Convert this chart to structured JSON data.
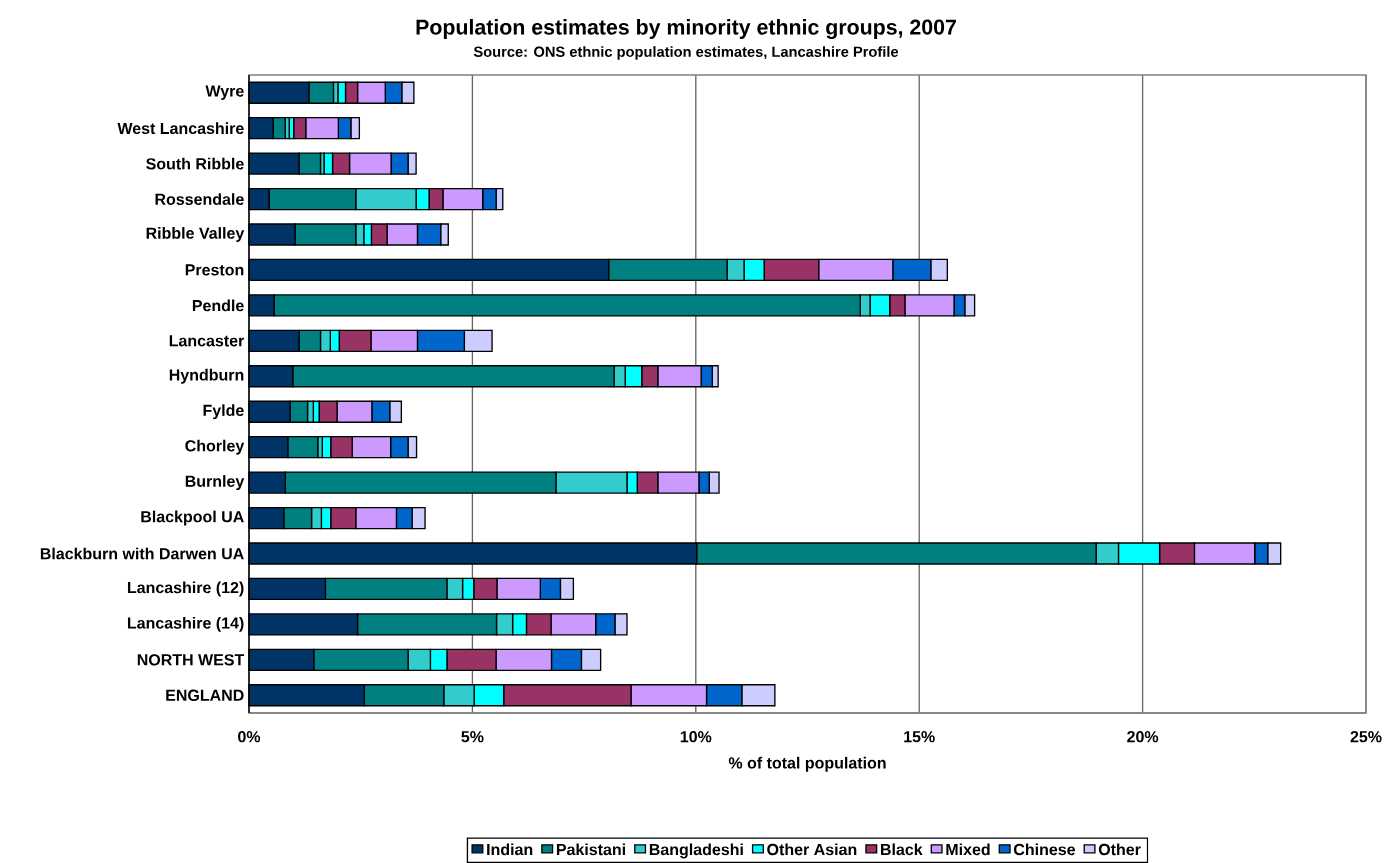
{
  "chart_data": {
    "type": "bar",
    "orientation": "horizontal",
    "stacked": true,
    "title": "Population estimates by minority ethnic groups, 2007",
    "subtitle": "Source: ONS ethnic population estimates, Lancashire Profile",
    "xlabel": "% of total population",
    "categories": [
      "Wyre",
      "West Lancashire",
      "South Ribble",
      "Rossendale",
      "Ribble Valley",
      "Preston",
      "Pendle",
      "Lancaster",
      "Hyndburn",
      "Fylde",
      "Chorley",
      "Burnley",
      "Blackpool UA",
      "Blackburn with Darwen UA",
      "Lancashire (12)",
      "Lancashire (14)",
      "NORTH WEST",
      "ENGLAND"
    ],
    "series": [
      {
        "name": "Indian",
        "color": "#003366",
        "values": [
          1.34,
          0.54,
          1.12,
          0.45,
          1.03,
          8.05,
          0.56,
          1.12,
          0.98,
          0.92,
          0.87,
          0.81,
          0.78,
          10.02,
          1.71,
          2.43,
          1.45,
          2.58
        ]
      },
      {
        "name": "Pakistani",
        "color": "#008080",
        "values": [
          0.55,
          0.27,
          0.48,
          1.94,
          1.36,
          2.65,
          13.12,
          0.48,
          7.19,
          0.39,
          0.67,
          6.06,
          0.62,
          8.94,
          2.72,
          3.11,
          2.11,
          1.78
        ]
      },
      {
        "name": "Bangladeshi",
        "color": "#33cccc",
        "values": [
          0.1,
          0.09,
          0.08,
          1.35,
          0.18,
          0.38,
          0.22,
          0.22,
          0.25,
          0.13,
          0.1,
          1.59,
          0.22,
          0.5,
          0.35,
          0.36,
          0.5,
          0.68
        ]
      },
      {
        "name": "Other Asian",
        "color": "#00ffff",
        "values": [
          0.17,
          0.1,
          0.19,
          0.29,
          0.17,
          0.45,
          0.44,
          0.2,
          0.37,
          0.13,
          0.19,
          0.23,
          0.21,
          0.92,
          0.25,
          0.31,
          0.37,
          0.66
        ]
      },
      {
        "name": "Black",
        "color": "#993366",
        "values": [
          0.27,
          0.27,
          0.38,
          0.31,
          0.35,
          1.22,
          0.34,
          0.71,
          0.36,
          0.4,
          0.48,
          0.46,
          0.56,
          0.78,
          0.52,
          0.55,
          1.1,
          2.85
        ]
      },
      {
        "name": "Mixed",
        "color": "#cc99ff",
        "values": [
          0.62,
          0.73,
          0.93,
          0.89,
          0.68,
          1.66,
          1.1,
          1.04,
          0.97,
          0.78,
          0.86,
          0.92,
          0.91,
          1.35,
          0.97,
          1.0,
          1.24,
          1.69
        ]
      },
      {
        "name": "Chinese",
        "color": "#0066cc",
        "values": [
          0.37,
          0.28,
          0.38,
          0.3,
          0.52,
          0.85,
          0.24,
          1.05,
          0.25,
          0.4,
          0.39,
          0.23,
          0.35,
          0.29,
          0.45,
          0.43,
          0.67,
          0.79
        ]
      },
      {
        "name": "Other",
        "color": "#ccccff",
        "values": [
          0.27,
          0.19,
          0.18,
          0.15,
          0.17,
          0.37,
          0.22,
          0.62,
          0.13,
          0.26,
          0.19,
          0.22,
          0.29,
          0.29,
          0.29,
          0.27,
          0.43,
          0.74
        ]
      }
    ],
    "xlim": [
      0,
      25
    ],
    "xticks": [
      {
        "value": 0,
        "label": "0%"
      },
      {
        "value": 5,
        "label": "5%"
      },
      {
        "value": 10,
        "label": "10%"
      },
      {
        "value": 15,
        "label": "15%"
      },
      {
        "value": 20,
        "label": "20%"
      },
      {
        "value": 25,
        "label": "25%"
      }
    ],
    "grid": "x",
    "legend": "bottom"
  }
}
